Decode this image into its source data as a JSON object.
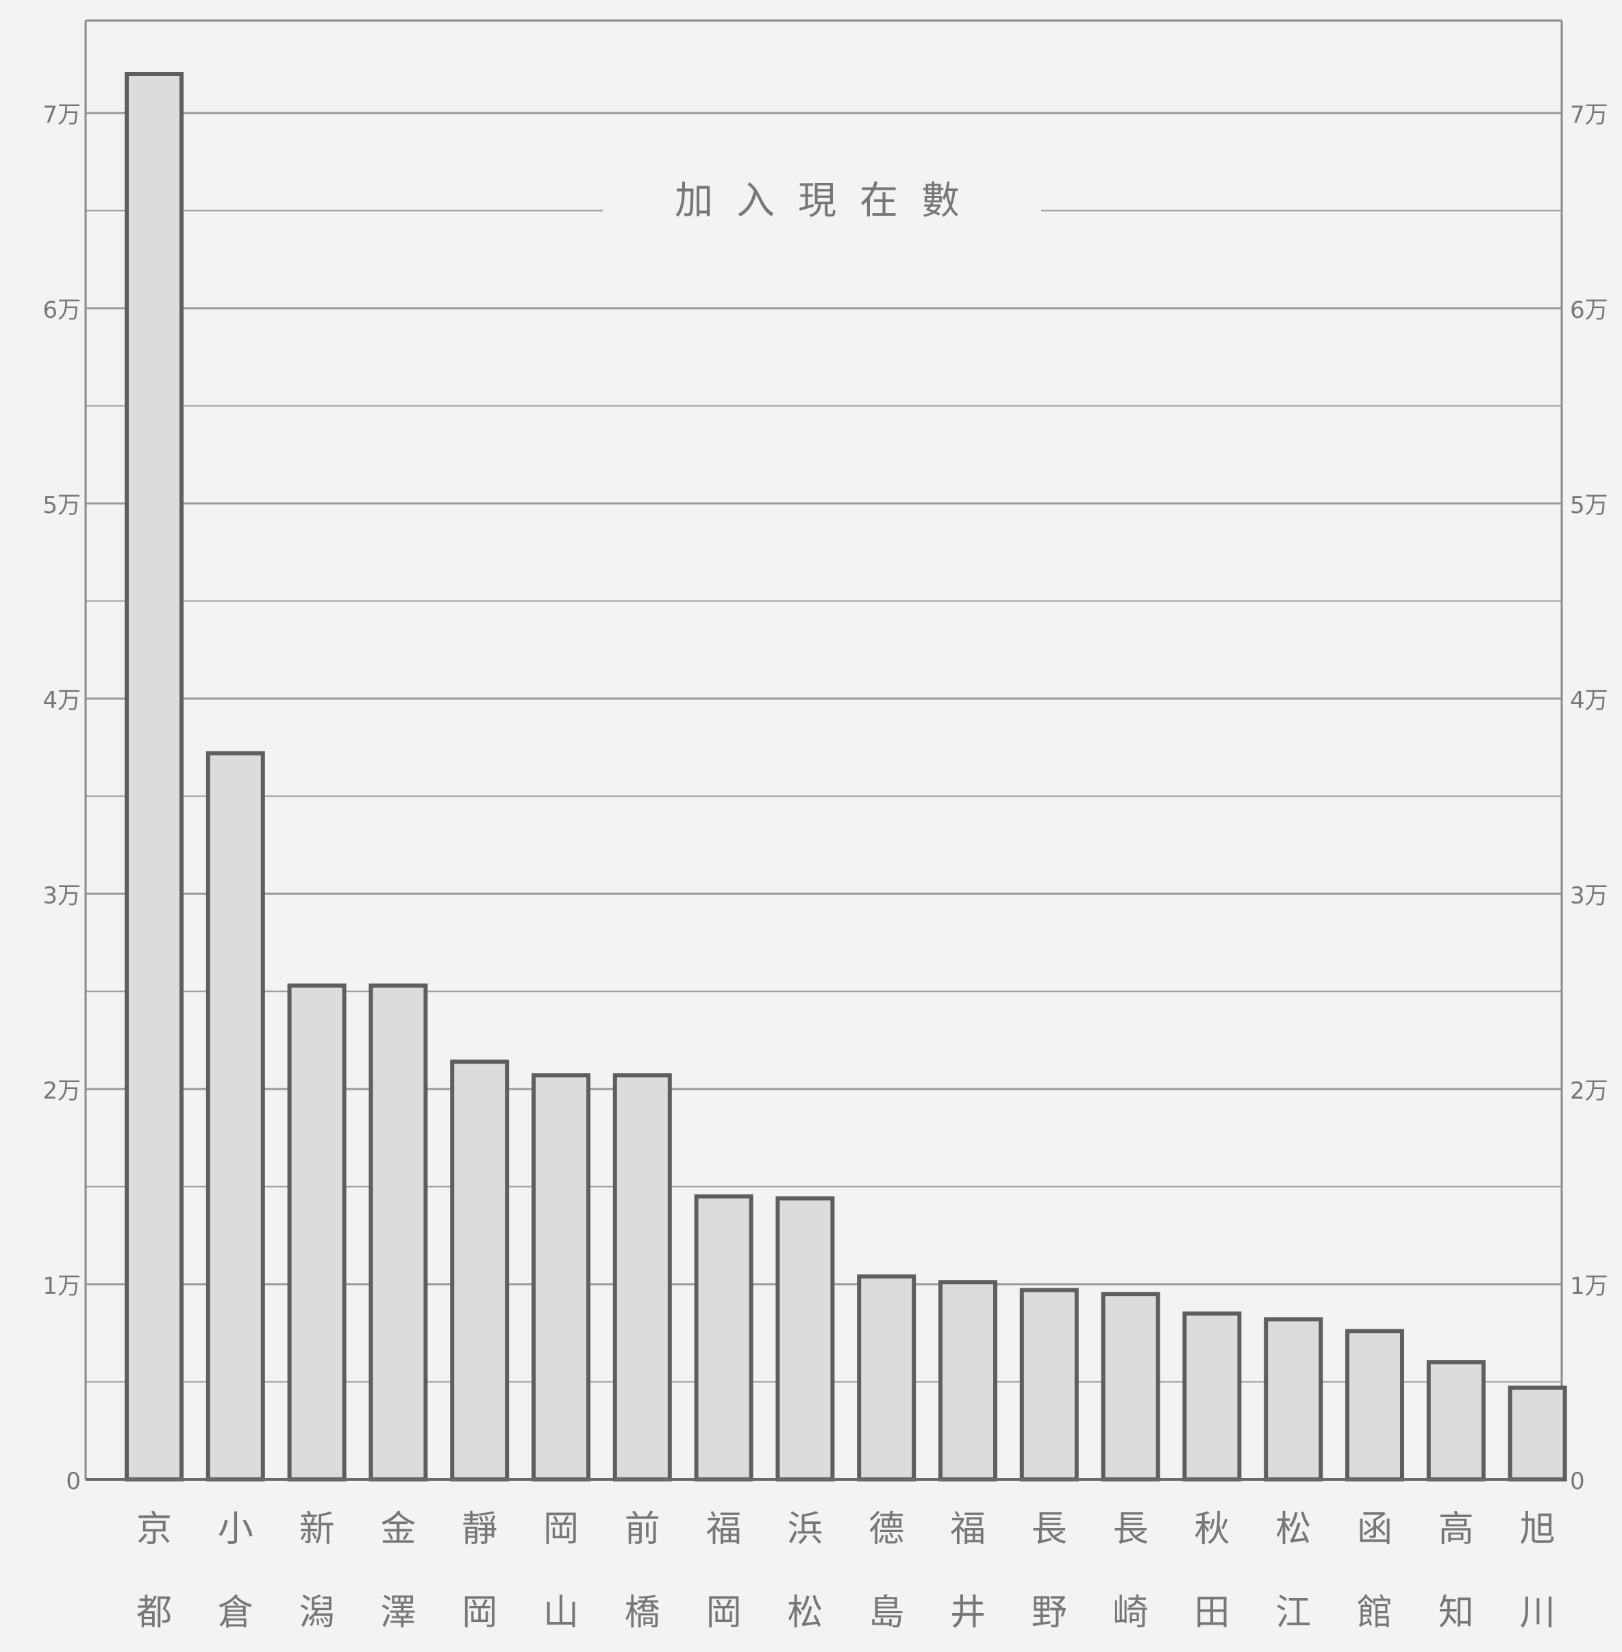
{
  "chart_data": {
    "type": "bar",
    "title": "加入現在數",
    "categories": [
      [
        "京",
        "都"
      ],
      [
        "小",
        "倉"
      ],
      [
        "新",
        "潟"
      ],
      [
        "金",
        "澤"
      ],
      [
        "靜",
        "岡"
      ],
      [
        "岡",
        "山"
      ],
      [
        "前",
        "橋"
      ],
      [
        "福",
        "岡"
      ],
      [
        "浜",
        "松"
      ],
      [
        "德",
        "島"
      ],
      [
        "福",
        "井"
      ],
      [
        "長",
        "野"
      ],
      [
        "長",
        "崎"
      ],
      [
        "秋",
        "田"
      ],
      [
        "松",
        "江"
      ],
      [
        "函",
        "館"
      ],
      [
        "高",
        "知"
      ],
      [
        "旭",
        "川"
      ]
    ],
    "values": [
      72000,
      37200,
      25300,
      25300,
      21400,
      20700,
      20700,
      14500,
      14400,
      10400,
      10100,
      9700,
      9500,
      8500,
      8200,
      7600,
      6000,
      4700
    ],
    "y_tick_labels": [
      "0",
      "1万",
      "2万",
      "3万",
      "4万",
      "5万",
      "6万",
      "7万"
    ],
    "ylim": [
      0,
      74500
    ],
    "major_step": 10000,
    "minor_step": 5000,
    "grid": true,
    "colors": {
      "background": "#f3f3f1",
      "bar_fill": "#dcdcda",
      "bar_stroke": "#5e5e5e",
      "grid": "#9a9a9a",
      "text": "#777777"
    }
  }
}
